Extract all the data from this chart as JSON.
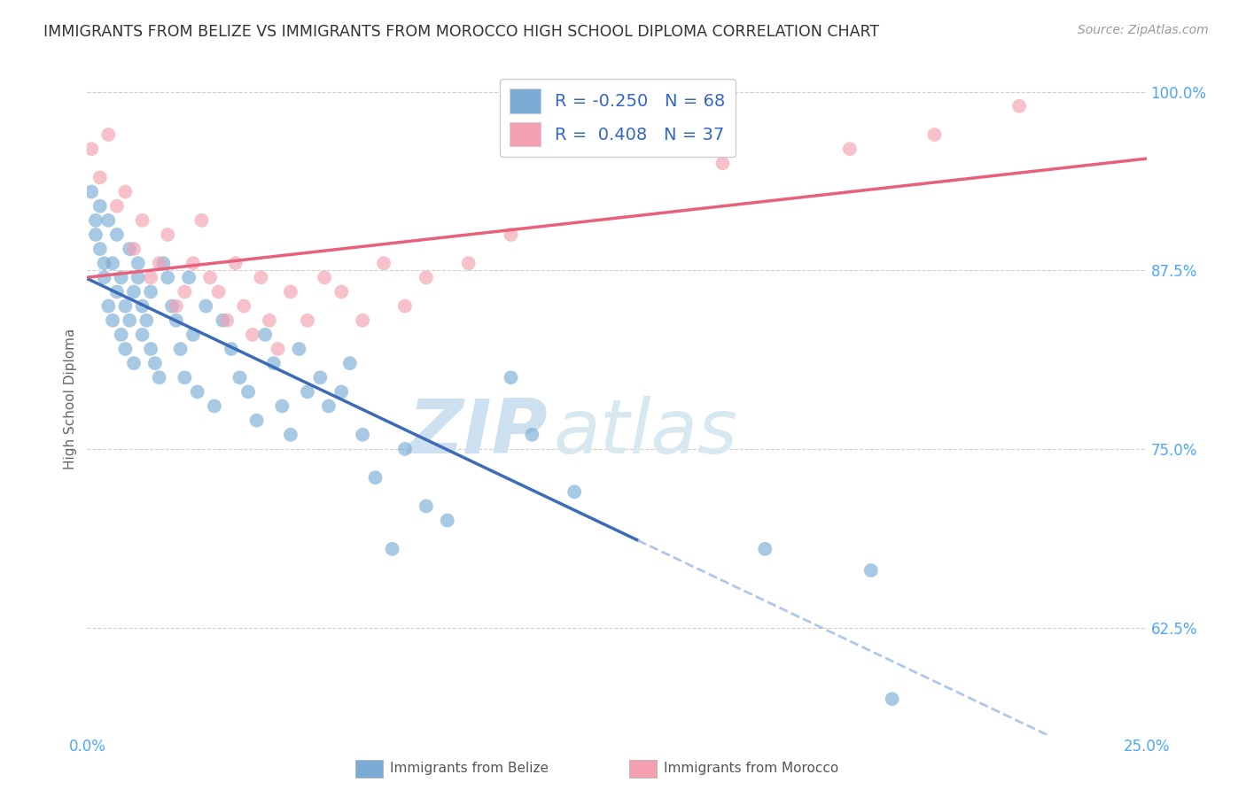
{
  "title": "IMMIGRANTS FROM BELIZE VS IMMIGRANTS FROM MOROCCO HIGH SCHOOL DIPLOMA CORRELATION CHART",
  "source": "Source: ZipAtlas.com",
  "ylabel": "High School Diploma",
  "xlim": [
    0.0,
    0.25
  ],
  "ylim": [
    0.55,
    1.02
  ],
  "yticks": [
    0.625,
    0.75,
    0.875,
    1.0
  ],
  "ytick_labels": [
    "62.5%",
    "75.0%",
    "87.5%",
    "100.0%"
  ],
  "legend_label1": "Immigrants from Belize",
  "legend_label2": "Immigrants from Morocco",
  "R1": -0.25,
  "N1": 68,
  "R2": 0.408,
  "N2": 37,
  "color_belize": "#7aacd6",
  "color_morocco": "#f4a0b0",
  "color_line_belize": "#3b6cb5",
  "color_line_morocco": "#e8607a",
  "color_line_ext": "#b0c8e8",
  "watermark_zip_color": "#d6e8f7",
  "watermark_atlas_color": "#c8d8e8",
  "background_color": "#ffffff",
  "grid_color": "#d0d0d0",
  "belize_x": [
    0.001,
    0.002,
    0.002,
    0.003,
    0.003,
    0.004,
    0.004,
    0.005,
    0.005,
    0.006,
    0.006,
    0.007,
    0.007,
    0.008,
    0.008,
    0.009,
    0.009,
    0.01,
    0.01,
    0.011,
    0.011,
    0.012,
    0.012,
    0.013,
    0.013,
    0.014,
    0.015,
    0.015,
    0.016,
    0.017,
    0.018,
    0.019,
    0.02,
    0.021,
    0.022,
    0.023,
    0.024,
    0.025,
    0.026,
    0.028,
    0.03,
    0.032,
    0.034,
    0.036,
    0.038,
    0.04,
    0.042,
    0.044,
    0.046,
    0.048,
    0.05,
    0.052,
    0.055,
    0.057,
    0.06,
    0.062,
    0.065,
    0.068,
    0.072,
    0.075,
    0.08,
    0.085,
    0.1,
    0.105,
    0.115,
    0.16,
    0.185,
    0.19
  ],
  "belize_y": [
    0.93,
    0.91,
    0.9,
    0.89,
    0.92,
    0.88,
    0.87,
    0.91,
    0.85,
    0.84,
    0.88,
    0.86,
    0.9,
    0.83,
    0.87,
    0.85,
    0.82,
    0.89,
    0.84,
    0.86,
    0.81,
    0.88,
    0.87,
    0.83,
    0.85,
    0.84,
    0.82,
    0.86,
    0.81,
    0.8,
    0.88,
    0.87,
    0.85,
    0.84,
    0.82,
    0.8,
    0.87,
    0.83,
    0.79,
    0.85,
    0.78,
    0.84,
    0.82,
    0.8,
    0.79,
    0.77,
    0.83,
    0.81,
    0.78,
    0.76,
    0.82,
    0.79,
    0.8,
    0.78,
    0.79,
    0.81,
    0.76,
    0.73,
    0.68,
    0.75,
    0.71,
    0.7,
    0.8,
    0.76,
    0.72,
    0.68,
    0.665,
    0.575
  ],
  "morocco_x": [
    0.001,
    0.003,
    0.005,
    0.007,
    0.009,
    0.011,
    0.013,
    0.015,
    0.017,
    0.019,
    0.021,
    0.023,
    0.025,
    0.027,
    0.029,
    0.031,
    0.033,
    0.035,
    0.037,
    0.039,
    0.041,
    0.043,
    0.045,
    0.048,
    0.052,
    0.056,
    0.06,
    0.065,
    0.07,
    0.075,
    0.08,
    0.09,
    0.1,
    0.15,
    0.18,
    0.2,
    0.22
  ],
  "morocco_y": [
    0.96,
    0.94,
    0.97,
    0.92,
    0.93,
    0.89,
    0.91,
    0.87,
    0.88,
    0.9,
    0.85,
    0.86,
    0.88,
    0.91,
    0.87,
    0.86,
    0.84,
    0.88,
    0.85,
    0.83,
    0.87,
    0.84,
    0.82,
    0.86,
    0.84,
    0.87,
    0.86,
    0.84,
    0.88,
    0.85,
    0.87,
    0.88,
    0.9,
    0.95,
    0.96,
    0.97,
    0.99
  ]
}
